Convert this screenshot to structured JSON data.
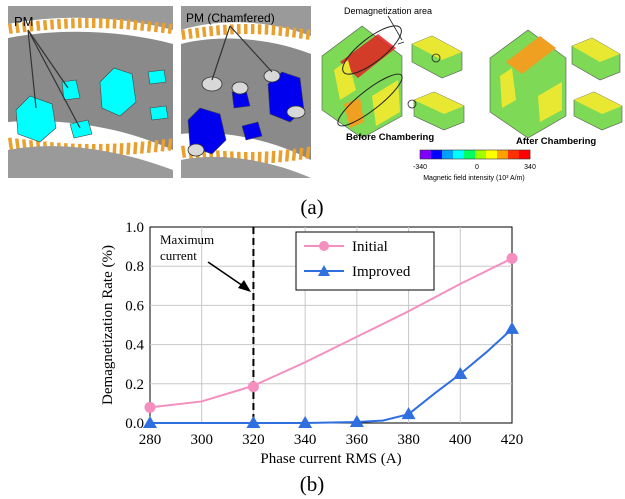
{
  "panel_a": {
    "caption": "(a)",
    "pm_label": "PM",
    "pm_chamfered_label": "PM (Chamfered)",
    "demag_area_label": "Demagnetization area",
    "before_label": "Before Chambering",
    "after_label": "After Chambering",
    "colorbar": {
      "min_label": "-340",
      "mid_label": "0",
      "max_label": "340",
      "title": "Magnetic field intensity (10³ A/m)",
      "colors": [
        "#7f00ff",
        "#0000ff",
        "#00a0ff",
        "#00ffff",
        "#00ff60",
        "#a0ff00",
        "#ffff00",
        "#ffa000",
        "#ff3000",
        "#ff0000"
      ]
    },
    "colors": {
      "steel": "#808080",
      "teeth": "#e8a030",
      "pm_original": "#00ffff",
      "pm_chamfered": "#0000ee",
      "field_green": "#7ed957",
      "field_yellow": "#e8e832",
      "field_orange": "#f0a020",
      "field_red": "#e02020"
    }
  },
  "panel_b": {
    "caption": "(b)",
    "annotation": [
      "Maximum",
      "current"
    ]
  },
  "chart_data": {
    "type": "line",
    "title": "",
    "xlabel": "Phase current RMS (A)",
    "ylabel": "Demagnetization Rate (%)",
    "xlim": [
      280,
      420
    ],
    "ylim": [
      0.0,
      1.0
    ],
    "x_ticks": [
      "280",
      "300",
      "320",
      "340",
      "360",
      "380",
      "400",
      "420"
    ],
    "y_ticks": [
      "0.0",
      "0.2",
      "0.4",
      "0.6",
      "0.8",
      "1.0"
    ],
    "grid": true,
    "legend_position": "top-center",
    "vertical_marker_x": 320,
    "series": [
      {
        "name": "Initial",
        "color": "#f48fbf",
        "marker": "circle",
        "line_x": [
          280,
          300,
          320,
          340,
          360,
          380,
          400,
          420
        ],
        "line_y": [
          0.08,
          0.11,
          0.19,
          0.31,
          0.44,
          0.57,
          0.71,
          0.84
        ],
        "marker_x": [
          280,
          320,
          420
        ],
        "marker_y": [
          0.08,
          0.185,
          0.84
        ]
      },
      {
        "name": "Improved",
        "color": "#2f6fe0",
        "marker": "triangle",
        "line_x": [
          280,
          300,
          320,
          340,
          360,
          370,
          380,
          390,
          400,
          410,
          420
        ],
        "line_y": [
          0.0,
          0.0,
          0.0,
          0.0,
          0.005,
          0.012,
          0.045,
          0.15,
          0.25,
          0.36,
          0.48
        ],
        "marker_x": [
          280,
          320,
          340,
          360,
          380,
          400,
          420
        ],
        "marker_y": [
          0.0,
          0.0,
          0.0,
          0.005,
          0.045,
          0.25,
          0.48
        ]
      }
    ]
  }
}
